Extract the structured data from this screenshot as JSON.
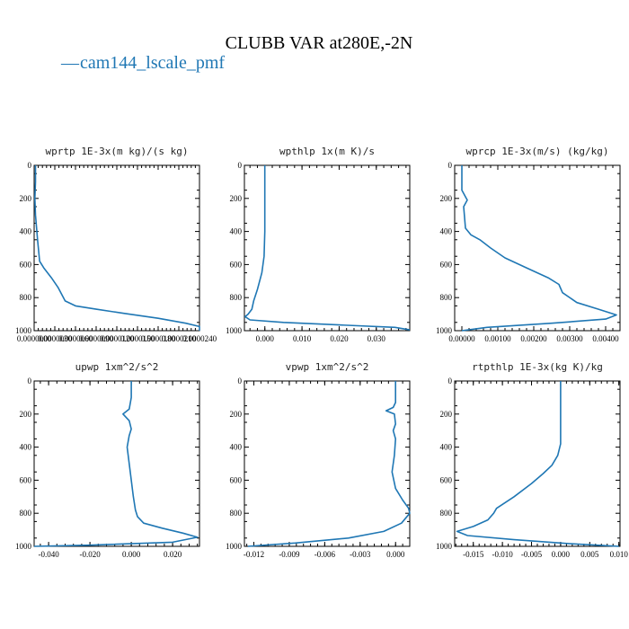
{
  "figure": {
    "title": "CLUBB VAR at280E,-2N",
    "legend": {
      "dash": "—",
      "label": "cam144_lscale_pmf"
    },
    "line_color": "#1f77b4"
  },
  "chart_data": [
    {
      "type": "line",
      "title": "wprtp  1E-3x(m kg)/(s kg)",
      "xlim": [
        0.0,
        2.4e-05
      ],
      "ylim": [
        1000,
        0
      ],
      "x_ticks": [
        0,
        3e-06,
        6e-06,
        9e-06,
        1.2e-05,
        1.5e-05,
        1.8e-05,
        2.1e-05,
        2.4e-05
      ],
      "x_tick_labels": [
        "0.0000000",
        "0.0000030",
        "0.0000060",
        "0.0000090",
        "0.0000120",
        "0.0000150",
        "0.0000180",
        "0.0000210",
        "0.0000240"
      ],
      "y_ticks": [
        0,
        200,
        400,
        600,
        800,
        1000
      ],
      "y_tick_labels": [
        "0",
        "200",
        "400",
        "600",
        "800",
        "1000"
      ],
      "series": [
        {
          "x": [
            2e-07,
            2e-07,
            1e-07,
            2e-07,
            5e-07,
            8e-07,
            1.4e-06,
            2.5e-06,
            3.5e-06,
            4.5e-06,
            6e-06,
            9e-06,
            1.3e-05,
            1.8e-05,
            2.2e-05,
            2.4e-05,
            2.4e-05
          ],
          "y": [
            0,
            100,
            200,
            300,
            450,
            580,
            620,
            680,
            740,
            820,
            850,
            870,
            895,
            925,
            955,
            975,
            1000
          ]
        }
      ]
    },
    {
      "type": "line",
      "title": "wpthlp  1x(m K)/s",
      "xlim": [
        -0.0055,
        0.039
      ],
      "ylim": [
        1000,
        0
      ],
      "x_ticks": [
        0.0,
        0.01,
        0.02,
        0.03
      ],
      "x_tick_labels": [
        "0.000",
        "0.010",
        "0.020",
        "0.030"
      ],
      "y_ticks": [
        0,
        200,
        400,
        600,
        800,
        1000
      ],
      "y_tick_labels": [
        "0",
        "200",
        "400",
        "600",
        "800",
        "1000"
      ],
      "series": [
        {
          "x": [
            0.0,
            0.0,
            0.0,
            -0.0002,
            -0.0008,
            -0.002,
            -0.003,
            -0.0035,
            -0.0045,
            -0.0053,
            -0.004,
            0.005,
            0.02,
            0.035,
            0.039
          ],
          "y": [
            0,
            200,
            400,
            550,
            650,
            750,
            820,
            870,
            900,
            915,
            935,
            950,
            965,
            980,
            995
          ]
        }
      ]
    },
    {
      "type": "line",
      "title": "wprcp  1E-3x(m/s) (kg/kg)",
      "xlim": [
        -0.0002,
        0.0044
      ],
      "ylim": [
        1000,
        0
      ],
      "x_ticks": [
        0.0,
        0.001,
        0.002,
        0.003,
        0.004
      ],
      "x_tick_labels": [
        "0.00000",
        "0.00100",
        "0.00200",
        "0.00300",
        "0.00400"
      ],
      "y_ticks": [
        0,
        200,
        400,
        600,
        800,
        1000
      ],
      "y_tick_labels": [
        "0",
        "200",
        "400",
        "600",
        "800",
        "1000"
      ],
      "series": [
        {
          "x": [
            0.0,
            0.0,
            0.0001,
            0.00015,
            5e-05,
            0.0001,
            0.00025,
            0.0005,
            0.0008,
            0.0012,
            0.0018,
            0.0024,
            0.0027,
            0.0028,
            0.0032,
            0.0038,
            0.0043,
            0.004,
            0.0025,
            0.0007,
            0.0
          ],
          "y": [
            0,
            150,
            190,
            210,
            250,
            380,
            420,
            450,
            500,
            560,
            620,
            680,
            720,
            770,
            830,
            870,
            905,
            930,
            955,
            980,
            1000
          ]
        }
      ]
    },
    {
      "type": "line",
      "title": "upwp  1xm^2/s^2",
      "xlim": [
        -0.047,
        0.033
      ],
      "ylim": [
        1000,
        0
      ],
      "x_ticks": [
        -0.04,
        -0.02,
        0.0,
        0.02
      ],
      "x_tick_labels": [
        "-0.040",
        "-0.020",
        "0.000",
        "0.020"
      ],
      "y_ticks": [
        0,
        200,
        400,
        600,
        800,
        1000
      ],
      "y_tick_labels": [
        "0",
        "200",
        "400",
        "600",
        "800",
        "1000"
      ],
      "series": [
        {
          "x": [
            0.0,
            0.0,
            -0.001,
            -0.004,
            -0.001,
            0.0,
            -0.001,
            -0.002,
            -0.001,
            0.0,
            0.001,
            0.002,
            0.003,
            0.006,
            0.015,
            0.025,
            0.032,
            0.02,
            -0.02,
            -0.047
          ],
          "y": [
            0,
            100,
            170,
            200,
            240,
            290,
            330,
            400,
            500,
            600,
            700,
            780,
            820,
            860,
            890,
            920,
            945,
            975,
            993,
            1000
          ]
        }
      ]
    },
    {
      "type": "line",
      "title": "vpwp  1xm^2/s^2",
      "xlim": [
        -0.0128,
        0.0012
      ],
      "ylim": [
        1000,
        0
      ],
      "x_ticks": [
        -0.012,
        -0.009,
        -0.006,
        -0.003,
        0.0
      ],
      "x_tick_labels": [
        "-0.012",
        "-0.009",
        "-0.006",
        "-0.003",
        "0.000"
      ],
      "y_ticks": [
        0,
        200,
        400,
        600,
        800,
        1000
      ],
      "y_tick_labels": [
        "0",
        "200",
        "400",
        "600",
        "800",
        "1000"
      ],
      "series": [
        {
          "x": [
            0.0,
            0.0,
            -0.0002,
            -0.0008,
            -0.0001,
            0.0,
            -0.0002,
            0.0,
            -0.0001,
            -0.0003,
            0.0,
            0.0006,
            0.0011,
            0.0012,
            0.0005,
            -0.001,
            -0.004,
            -0.0085,
            -0.0125
          ],
          "y": [
            0,
            130,
            160,
            180,
            200,
            260,
            300,
            350,
            450,
            550,
            650,
            720,
            770,
            800,
            860,
            910,
            950,
            980,
            1000
          ]
        }
      ]
    },
    {
      "type": "line",
      "title": "rtpthlp  1E-3x(kg K)/kg",
      "xlim": [
        -0.0182,
        0.0102
      ],
      "ylim": [
        1000,
        0
      ],
      "x_ticks": [
        -0.015,
        -0.01,
        -0.005,
        0.0,
        0.005,
        0.01
      ],
      "x_tick_labels": [
        "-0.015",
        "-0.010",
        "-0.005",
        "0.000",
        "0.005",
        "0.010"
      ],
      "y_ticks": [
        0,
        200,
        400,
        600,
        800,
        1000
      ],
      "y_tick_labels": [
        "0",
        "200",
        "400",
        "600",
        "800",
        "1000"
      ],
      "series": [
        {
          "x": [
            0.0,
            0.0,
            0.0,
            -0.0005,
            -0.0015,
            -0.003,
            -0.005,
            -0.008,
            -0.011,
            -0.0115,
            -0.0125,
            -0.015,
            -0.0178,
            -0.016,
            -0.008,
            0.002,
            0.01
          ],
          "y": [
            0,
            200,
            380,
            450,
            510,
            560,
            620,
            700,
            770,
            800,
            840,
            880,
            910,
            935,
            960,
            985,
            1000
          ]
        }
      ]
    }
  ]
}
